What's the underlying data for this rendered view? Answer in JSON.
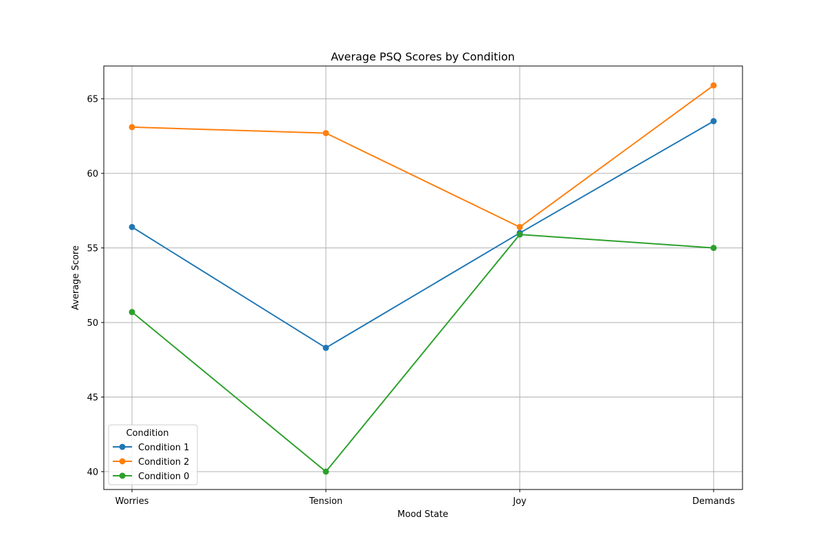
{
  "chart_data": {
    "type": "line",
    "title": "Average PSQ Scores by Condition",
    "xlabel": "Mood State",
    "ylabel": "Average Score",
    "categories": [
      "Worries",
      "Tension",
      "Joy",
      "Demands"
    ],
    "ylim": [
      38.8,
      67.2
    ],
    "yticks": [
      40,
      45,
      50,
      55,
      60,
      65
    ],
    "grid": true,
    "legend": {
      "title": "Condition",
      "placement": "lower-left"
    },
    "series": [
      {
        "name": "Condition 1",
        "color": "#1f77b4",
        "values": [
          56.4,
          48.3,
          56.0,
          63.5
        ]
      },
      {
        "name": "Condition 2",
        "color": "#ff7f0e",
        "values": [
          63.1,
          62.7,
          56.4,
          65.9
        ]
      },
      {
        "name": "Condition 0",
        "color": "#2ca02c",
        "values": [
          50.7,
          40.0,
          55.9,
          55.0
        ]
      }
    ]
  }
}
